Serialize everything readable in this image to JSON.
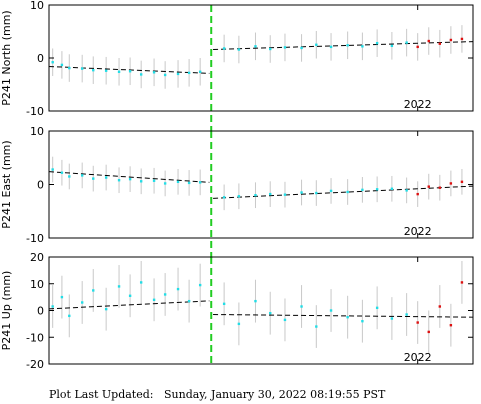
{
  "footer": {
    "label": "Plot Last Updated:",
    "timestamp": "Sunday, January 30, 2022 08:19:55 PST"
  },
  "colors": {
    "points": "#22dde6",
    "recent_points": "#dd1111",
    "error_bars": "#c8c8c8",
    "fit_line": "#000000",
    "event_line": "#22cc22",
    "frame": "#000000"
  },
  "chart_data": [
    {
      "type": "scatter",
      "title": "",
      "ylabel": "P241 North (mm)",
      "ylim": [
        -10,
        10
      ],
      "yticks": [
        -10,
        0,
        10
      ],
      "xlim": [
        2020.0,
        2022.3
      ],
      "xticks": [
        {
          "value": 2022.0,
          "label": "2022"
        }
      ],
      "event_x": 2020.88,
      "fit_segments": [
        {
          "x": [
            2020.0,
            2020.87
          ],
          "y": [
            -1.6,
            -2.9
          ]
        },
        {
          "x": [
            2020.89,
            2022.3
          ],
          "y": [
            1.6,
            3.1
          ]
        }
      ],
      "recent_from": 2021.95,
      "error_bar": 2.6,
      "series": [
        {
          "x": [
            2020.02,
            2020.07,
            2020.11,
            2020.18,
            2020.24,
            2020.31,
            2020.38,
            2020.44,
            2020.5,
            2020.57,
            2020.63,
            2020.7,
            2020.76,
            2020.82,
            2020.95,
            2021.03,
            2021.12,
            2021.2,
            2021.28,
            2021.37,
            2021.45,
            2021.53,
            2021.62,
            2021.7,
            2021.78,
            2021.86,
            2021.94,
            2022.0,
            2022.06,
            2022.12,
            2022.18,
            2022.24
          ],
          "y": [
            -0.8,
            -1.3,
            -1.9,
            -2.0,
            -2.3,
            -2.4,
            -2.6,
            -2.5,
            -3.1,
            -2.7,
            -3.2,
            -3.0,
            -2.8,
            -2.6,
            1.8,
            1.6,
            2.2,
            1.7,
            2.0,
            1.9,
            2.5,
            2.1,
            2.4,
            2.2,
            2.8,
            2.3,
            2.9,
            2.1,
            3.2,
            2.7,
            3.4,
            3.6
          ]
        }
      ]
    },
    {
      "type": "scatter",
      "title": "",
      "ylabel": "P241 East (mm)",
      "ylim": [
        -10,
        10
      ],
      "yticks": [
        -10,
        0,
        10
      ],
      "xlim": [
        2020.0,
        2022.3
      ],
      "xticks": [
        {
          "value": 2022.0,
          "label": "2022"
        }
      ],
      "event_x": 2020.88,
      "fit_segments": [
        {
          "x": [
            2020.0,
            2020.87
          ],
          "y": [
            2.4,
            0.4
          ]
        },
        {
          "x": [
            2020.89,
            2022.3
          ],
          "y": [
            -2.6,
            -0.3
          ]
        }
      ],
      "recent_from": 2021.95,
      "error_bar": 2.4,
      "series": [
        {
          "x": [
            2020.02,
            2020.07,
            2020.11,
            2020.18,
            2020.24,
            2020.31,
            2020.38,
            2020.44,
            2020.5,
            2020.57,
            2020.63,
            2020.7,
            2020.76,
            2020.82,
            2020.95,
            2021.03,
            2021.12,
            2021.2,
            2021.28,
            2021.37,
            2021.45,
            2021.53,
            2021.62,
            2021.7,
            2021.78,
            2021.86,
            2021.94,
            2022.0,
            2022.06,
            2022.12,
            2022.18,
            2022.24
          ],
          "y": [
            2.8,
            2.2,
            1.5,
            1.7,
            1.1,
            1.3,
            0.8,
            1.0,
            0.6,
            0.7,
            0.2,
            0.5,
            0.3,
            0.4,
            -2.4,
            -2.2,
            -2.0,
            -1.8,
            -1.9,
            -1.5,
            -1.6,
            -1.2,
            -1.4,
            -1.0,
            -0.9,
            -0.8,
            -1.1,
            -1.8,
            -0.4,
            -0.6,
            0.2,
            0.5
          ]
        }
      ]
    },
    {
      "type": "scatter",
      "title": "",
      "ylabel": "P241 Up (mm)",
      "ylim": [
        -20,
        20
      ],
      "yticks": [
        -20,
        -10,
        0,
        10,
        20
      ],
      "xlim": [
        2020.0,
        2022.3
      ],
      "xticks": [
        {
          "value": 2022.0,
          "label": "2022"
        }
      ],
      "event_x": 2020.88,
      "fit_segments": [
        {
          "x": [
            2020.0,
            2020.87
          ],
          "y": [
            0.6,
            3.6
          ]
        },
        {
          "x": [
            2020.89,
            2022.3
          ],
          "y": [
            -1.5,
            -2.5
          ]
        }
      ],
      "recent_from": 2021.95,
      "error_bar": 8.0,
      "series": [
        {
          "x": [
            2020.02,
            2020.07,
            2020.11,
            2020.18,
            2020.24,
            2020.31,
            2020.38,
            2020.44,
            2020.5,
            2020.57,
            2020.63,
            2020.7,
            2020.76,
            2020.82,
            2020.95,
            2021.03,
            2021.12,
            2021.2,
            2021.28,
            2021.37,
            2021.45,
            2021.53,
            2021.62,
            2021.7,
            2021.78,
            2021.86,
            2021.94,
            2022.0,
            2022.06,
            2022.12,
            2022.18,
            2022.24
          ],
          "y": [
            1.5,
            5.0,
            -2.0,
            3.0,
            7.5,
            0.5,
            9.0,
            5.5,
            10.5,
            4.0,
            6.0,
            8.0,
            3.5,
            9.5,
            2.5,
            -5.0,
            3.5,
            -1.0,
            -3.5,
            1.5,
            -6.0,
            0.0,
            -2.5,
            -4.0,
            1.0,
            -3.0,
            -1.5,
            -4.5,
            -8.0,
            1.5,
            -5.5,
            10.5
          ]
        }
      ]
    }
  ]
}
